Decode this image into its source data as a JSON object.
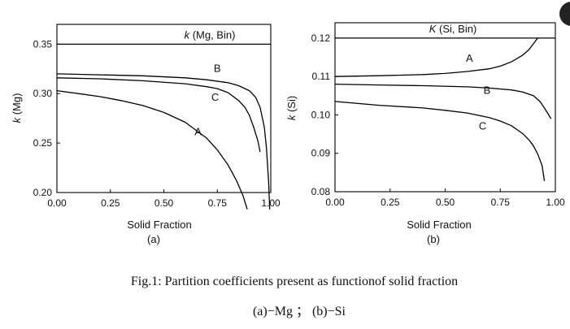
{
  "caption": {
    "line1": "Fig.1:  Partition coefficients present as functionof solid fraction",
    "line2": "(a)−Mg  ；   (b)−Si"
  },
  "chart_data": [
    {
      "type": "line",
      "panel_label": "(a)",
      "xlabel": "Solid  Fraction",
      "ylabel": "k (Mg)",
      "xlim": [
        0,
        1
      ],
      "ylim": [
        0.2,
        0.37
      ],
      "xticks": [
        "0.00",
        "0.25",
        "0.50",
        "0.75",
        "1.00"
      ],
      "yticks": [
        "0.20",
        "0.25",
        "0.30",
        "0.35"
      ],
      "reference_line": {
        "label": "k (Mg, Bin)",
        "y": 0.35
      },
      "series": [
        {
          "name": "A",
          "x": [
            0,
            0.1,
            0.2,
            0.3,
            0.4,
            0.5,
            0.6,
            0.7,
            0.75,
            0.8,
            0.84,
            0.87,
            0.89
          ],
          "y": [
            0.303,
            0.3,
            0.297,
            0.293,
            0.288,
            0.281,
            0.271,
            0.255,
            0.243,
            0.228,
            0.212,
            0.197,
            0.183
          ]
        },
        {
          "name": "B",
          "x": [
            0,
            0.2,
            0.4,
            0.6,
            0.7,
            0.8,
            0.85,
            0.9,
            0.93,
            0.95,
            0.97,
            0.98,
            0.99,
            0.995
          ],
          "y": [
            0.32,
            0.319,
            0.318,
            0.316,
            0.314,
            0.311,
            0.308,
            0.303,
            0.296,
            0.286,
            0.266,
            0.245,
            0.21,
            0.183
          ]
        },
        {
          "name": "C",
          "x": [
            0,
            0.2,
            0.4,
            0.6,
            0.7,
            0.75,
            0.8,
            0.85,
            0.88,
            0.9,
            0.92,
            0.94,
            0.95
          ],
          "y": [
            0.316,
            0.315,
            0.313,
            0.31,
            0.307,
            0.305,
            0.301,
            0.293,
            0.286,
            0.278,
            0.266,
            0.252,
            0.241
          ]
        }
      ],
      "series_labels": [
        {
          "text": "B",
          "x": 0.75,
          "y": 0.322
        },
        {
          "text": "C",
          "x": 0.74,
          "y": 0.293
        },
        {
          "text": "A",
          "x": 0.66,
          "y": 0.258
        }
      ]
    },
    {
      "type": "line",
      "panel_label": "(b)",
      "xlabel": "Solid  Fraction",
      "ylabel": "k (Si)",
      "xlim": [
        0,
        1
      ],
      "ylim": [
        0.08,
        0.124
      ],
      "xticks": [
        "0.00",
        "0.25",
        "0.50",
        "0.75",
        "1.00"
      ],
      "yticks": [
        "0.08",
        "0.09",
        "0.10",
        "0.11",
        "0.12"
      ],
      "reference_line": {
        "label": "K (Si, Bin)",
        "y": 0.12
      },
      "series": [
        {
          "name": "A",
          "x": [
            0,
            0.2,
            0.4,
            0.5,
            0.6,
            0.7,
            0.75,
            0.8,
            0.85,
            0.88,
            0.9,
            0.92
          ],
          "y": [
            0.11,
            0.1102,
            0.1105,
            0.1108,
            0.1113,
            0.112,
            0.1127,
            0.1138,
            0.1155,
            0.117,
            0.1185,
            0.12
          ]
        },
        {
          "name": "B",
          "x": [
            0,
            0.2,
            0.4,
            0.6,
            0.7,
            0.8,
            0.85,
            0.9,
            0.93,
            0.95,
            0.97,
            0.98
          ],
          "y": [
            0.108,
            0.1078,
            0.1076,
            0.1073,
            0.107,
            0.1065,
            0.106,
            0.105,
            0.1035,
            0.1018,
            0.1,
            0.099
          ]
        },
        {
          "name": "C",
          "x": [
            0,
            0.2,
            0.4,
            0.5,
            0.6,
            0.7,
            0.75,
            0.8,
            0.85,
            0.88,
            0.9,
            0.92,
            0.94,
            0.95
          ],
          "y": [
            0.1035,
            0.1025,
            0.1018,
            0.1012,
            0.1005,
            0.0993,
            0.0984,
            0.0972,
            0.0952,
            0.0935,
            0.092,
            0.0898,
            0.0868,
            0.0828
          ]
        }
      ],
      "series_labels": [
        {
          "text": "A",
          "x": 0.61,
          "y": 0.1138
        },
        {
          "text": "B",
          "x": 0.69,
          "y": 0.1055
        },
        {
          "text": "C",
          "x": 0.67,
          "y": 0.0962
        }
      ]
    }
  ]
}
